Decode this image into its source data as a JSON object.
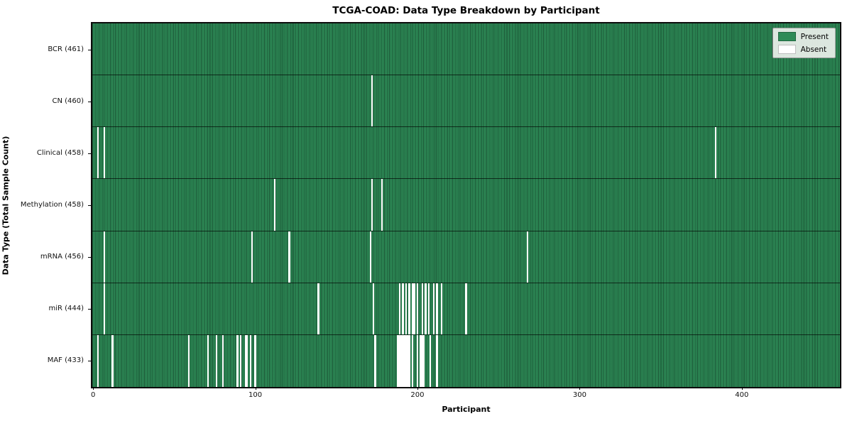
{
  "title": "TCGA-COAD: Data Type Breakdown by Participant",
  "colors": {
    "present": "#2e8b57",
    "absent": "#ffffff",
    "bar_edge_overlay": "rgba(8,34,21,0.5)",
    "plot_border": "#0d0d0d",
    "legend_bg": "#ebf0eb"
  },
  "total_participants": 461,
  "chart_data": {
    "type": "heatmap",
    "title": "TCGA-COAD: Data Type Breakdown by Participant",
    "xlabel": "Participant",
    "ylabel": "Data Type (Total Sample Count)",
    "xlim": [
      0,
      461
    ],
    "x_ticks": [
      0,
      100,
      200,
      300,
      400
    ],
    "grid": false,
    "legend": [
      "Present",
      "Absent"
    ],
    "legend_position": "upper right",
    "value_encoding": {
      "present": 1,
      "absent": 0
    },
    "rows": [
      {
        "label": "BCR (461)",
        "data_type": "BCR",
        "present_count": 461,
        "absent_participants": []
      },
      {
        "label": "CN (460)",
        "data_type": "CN",
        "present_count": 460,
        "absent_participants": [
          172
        ]
      },
      {
        "label": "Clinical (458)",
        "data_type": "Clinical",
        "present_count": 458,
        "absent_participants": [
          3,
          7,
          384
        ]
      },
      {
        "label": "Methylation (458)",
        "data_type": "Methylation",
        "present_count": 458,
        "absent_participants": [
          112,
          172,
          178
        ]
      },
      {
        "label": "mRNA (456)",
        "data_type": "mRNA",
        "present_count": 456,
        "absent_participants": [
          7,
          98,
          121,
          171,
          268
        ]
      },
      {
        "label": "miR (444)",
        "data_type": "miR",
        "present_count": 444,
        "absent_participants": [
          7,
          139,
          173,
          189,
          191,
          193,
          195,
          197,
          198,
          200,
          203,
          205,
          207,
          210,
          212,
          215,
          230
        ]
      },
      {
        "label": "MAF (433)",
        "data_type": "MAF",
        "present_count": 433,
        "absent_participants": [
          3,
          12,
          59,
          71,
          76,
          80,
          89,
          91,
          94,
          95,
          97,
          100,
          174,
          188,
          189,
          190,
          191,
          192,
          193,
          194,
          195,
          197,
          200,
          202,
          203,
          204,
          208,
          212
        ]
      }
    ]
  }
}
